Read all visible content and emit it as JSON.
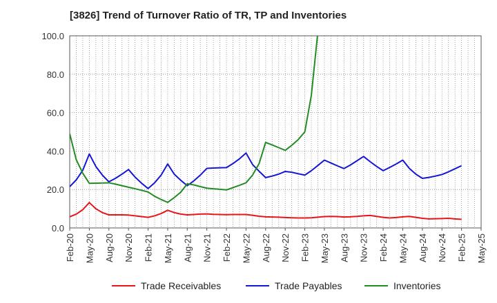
{
  "chart_data": {
    "type": "line",
    "title": "[3826]  Trend of Turnover Ratio of TR, TP and Inventories",
    "xlabel": "",
    "ylabel": "",
    "ylim": [
      0,
      100
    ],
    "yticks": [
      "0.0",
      "20.0",
      "40.0",
      "60.0",
      "80.0",
      "100.0"
    ],
    "xticks": [
      "Feb-20",
      "May-20",
      "Aug-20",
      "Nov-20",
      "Feb-21",
      "May-21",
      "Aug-21",
      "Nov-21",
      "Feb-22",
      "May-22",
      "Aug-22",
      "Nov-22",
      "Feb-23",
      "May-23",
      "Aug-23",
      "Nov-23",
      "Feb-24",
      "May-24",
      "Aug-24",
      "Nov-24",
      "Feb-25",
      "May-25"
    ],
    "x": [
      "Feb-20",
      "Mar-20",
      "Apr-20",
      "May-20",
      "Jun-20",
      "Jul-20",
      "Aug-20",
      "Sep-20",
      "Oct-20",
      "Nov-20",
      "Dec-20",
      "Jan-21",
      "Feb-21",
      "Mar-21",
      "Apr-21",
      "May-21",
      "Jun-21",
      "Jul-21",
      "Aug-21",
      "Sep-21",
      "Oct-21",
      "Nov-21",
      "Dec-21",
      "Jan-22",
      "Feb-22",
      "Mar-22",
      "Apr-22",
      "May-22",
      "Jun-22",
      "Jul-22",
      "Aug-22",
      "Sep-22",
      "Oct-22",
      "Nov-22",
      "Dec-22",
      "Jan-23",
      "Feb-23",
      "Mar-23",
      "Apr-23",
      "May-23",
      "Jun-23",
      "Jul-23",
      "Aug-23",
      "Sep-23",
      "Oct-23",
      "Nov-23",
      "Dec-23",
      "Jan-24",
      "Feb-24",
      "Mar-24",
      "Apr-24",
      "May-24",
      "Jun-24",
      "Jul-24",
      "Aug-24",
      "Sep-24",
      "Oct-24",
      "Nov-24",
      "Dec-24",
      "Jan-25",
      "Feb-25"
    ],
    "grid": true,
    "legend_position": "bottom",
    "series": [
      {
        "name": "Trade Receivables",
        "color": "#e8141a",
        "values": [
          5.8,
          7.2,
          9.5,
          13.2,
          10.0,
          8.0,
          6.8,
          6.8,
          6.8,
          6.7,
          6.3,
          5.9,
          5.5,
          6.3,
          7.5,
          9.2,
          8.0,
          7.2,
          6.8,
          7.0,
          7.2,
          7.3,
          7.1,
          7.0,
          6.9,
          7.0,
          7.0,
          7.0,
          6.6,
          6.1,
          5.8,
          5.7,
          5.6,
          5.4,
          5.3,
          5.2,
          5.2,
          5.3,
          5.6,
          5.9,
          6.0,
          5.9,
          5.7,
          5.8,
          6.0,
          6.3,
          6.5,
          6.0,
          5.5,
          5.2,
          5.4,
          5.8,
          6.0,
          5.5,
          5.0,
          4.7,
          4.8,
          4.9,
          5.0,
          4.7,
          4.5
        ]
      },
      {
        "name": "Trade Payables",
        "color": "#1515d6",
        "values": [
          21.5,
          25.0,
          30.0,
          38.5,
          32.0,
          27.5,
          24.0,
          25.8,
          28.0,
          30.4,
          26.5,
          23.3,
          20.5,
          23.5,
          27.5,
          33.3,
          28.0,
          24.8,
          22.0,
          24.5,
          27.5,
          31.0,
          31.2,
          31.3,
          31.4,
          33.5,
          36.0,
          39.0,
          33.0,
          29.5,
          26.2,
          27.0,
          28.0,
          29.4,
          29.0,
          28.2,
          27.5,
          29.8,
          32.5,
          35.3,
          33.8,
          32.3,
          30.9,
          32.8,
          35.0,
          37.2,
          34.5,
          32.0,
          29.8,
          31.5,
          33.3,
          35.3,
          31.0,
          28.0,
          25.8,
          26.3,
          27.0,
          27.8,
          29.2,
          30.8,
          32.4
        ]
      },
      {
        "name": "Inventories",
        "color": "#228b22",
        "values": [
          49.0,
          35.5,
          28.5,
          23.2,
          23.3,
          23.4,
          23.5,
          22.8,
          22.0,
          21.2,
          20.4,
          19.6,
          18.7,
          16.5,
          14.8,
          13.3,
          15.8,
          18.6,
          23.0,
          22.4,
          21.5,
          20.7,
          20.4,
          20.1,
          19.8,
          21.0,
          22.2,
          23.5,
          27.5,
          33.5,
          44.5,
          43.2,
          41.8,
          40.4,
          43.0,
          46.0,
          50.0,
          69.0,
          102.0,
          null,
          null,
          null,
          null,
          null,
          null,
          null,
          null,
          null,
          null,
          null,
          null,
          null,
          null,
          null,
          null,
          null,
          null,
          null,
          null,
          null,
          null
        ]
      }
    ]
  }
}
